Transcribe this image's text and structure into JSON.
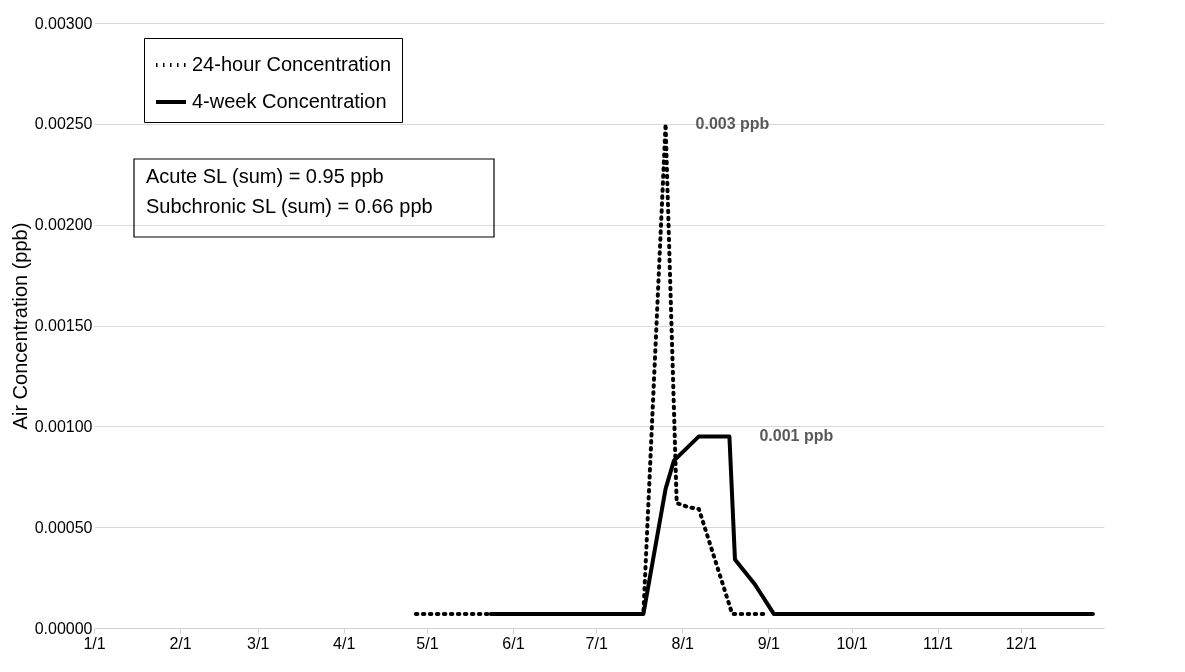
{
  "chart_data": {
    "type": "line",
    "ylabel": "Air Concentration (ppb)",
    "xlim": [
      "--01-01",
      "--12-31"
    ],
    "xticks": [
      {
        "value": "--01-01",
        "label": "1/1"
      },
      {
        "value": "--02-01",
        "label": "2/1"
      },
      {
        "value": "--03-01",
        "label": "3/1"
      },
      {
        "value": "--04-01",
        "label": "4/1"
      },
      {
        "value": "--05-01",
        "label": "5/1"
      },
      {
        "value": "--06-01",
        "label": "6/1"
      },
      {
        "value": "--07-01",
        "label": "7/1"
      },
      {
        "value": "--08-01",
        "label": "8/1"
      },
      {
        "value": "--09-01",
        "label": "9/1"
      },
      {
        "value": "--10-01",
        "label": "10/1"
      },
      {
        "value": "--11-01",
        "label": "11/1"
      },
      {
        "value": "--12-01",
        "label": "12/1"
      }
    ],
    "ylim": [
      0,
      0.003
    ],
    "yticks": [
      {
        "value": 0,
        "label": "0.00000"
      },
      {
        "value": 0.0005,
        "label": "0.00050"
      },
      {
        "value": 0.001,
        "label": "0.00100"
      },
      {
        "value": 0.0015,
        "label": "0.00150"
      },
      {
        "value": 0.002,
        "label": "0.00200"
      },
      {
        "value": 0.0025,
        "label": "0.00250"
      },
      {
        "value": 0.003,
        "label": "0.00300"
      }
    ],
    "grid": "y",
    "legend": "top left",
    "series": [
      {
        "name": "24-hour Concentration",
        "color": "#000000",
        "line_style": "dotted",
        "x": [
          "--04-27",
          "--07-18",
          "--07-26",
          "--07-30",
          "--08-03",
          "--08-07",
          "--08-19",
          "--09-01"
        ],
        "values": [
          7e-05,
          7e-05,
          0.0025,
          0.00062,
          0.0006,
          0.00059,
          7e-05,
          7e-05
        ]
      },
      {
        "name": "4-week Concentration",
        "color": "#000000",
        "line_style": "solid",
        "x": [
          "--05-24",
          "--07-18",
          "--07-26",
          "--07-29",
          "--08-07",
          "--08-18",
          "--08-20",
          "--08-27",
          "--09-03",
          "--12-27"
        ],
        "values": [
          7e-05,
          7e-05,
          0.00069,
          0.00083,
          0.00095,
          0.00095,
          0.00034,
          0.00022,
          7e-05,
          7e-05
        ]
      }
    ],
    "annotations": [
      {
        "text": "0.003 ppb",
        "x": "--07-26",
        "y": 0.0025
      },
      {
        "text": "0.001 ppb",
        "x": "--08-18",
        "y": 0.00095
      },
      "Acute SL (sum) = 0.95 ppb\nSubchronic SL (sum) = 0.66 ppb"
    ]
  }
}
